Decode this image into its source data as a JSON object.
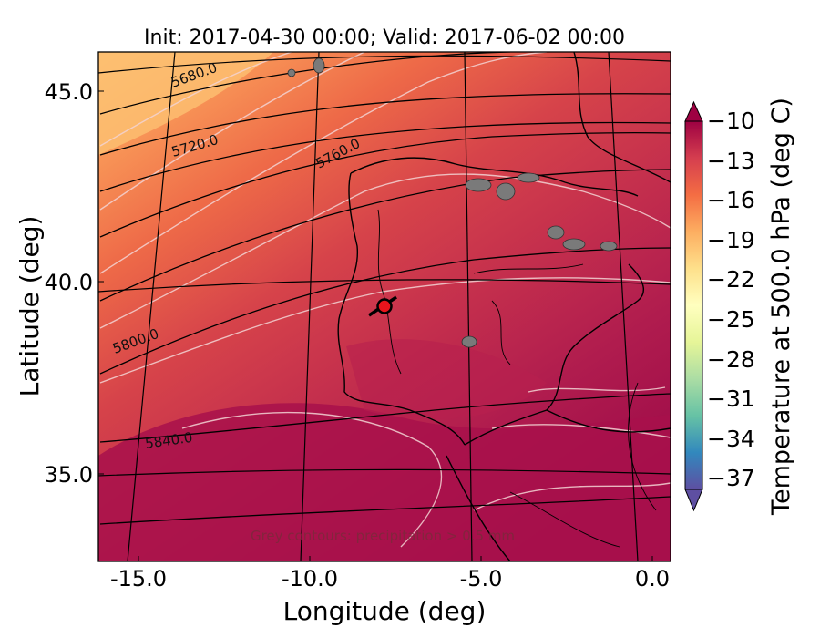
{
  "title": "Init: 2017-04-30 00:00; Valid: 2017-06-02 00:00",
  "axes": {
    "xlabel": "Longitude (deg)",
    "ylabel": "Latitude (deg)",
    "xticks": [
      "-15.0",
      "-10.0",
      "-5.0",
      "0.0"
    ],
    "yticks": [
      "45.0",
      "40.0",
      "35.0"
    ]
  },
  "colorbar": {
    "label": "Temperature at 500.0 hPa (deg C)",
    "ticks": [
      "−10",
      "−13",
      "−16",
      "−19",
      "−22",
      "−25",
      "−28",
      "−31",
      "−34",
      "−37"
    ]
  },
  "height_contours": [
    "5680.0",
    "5720.0",
    "5760.0",
    "5800.0",
    "5840.0"
  ],
  "footnote": "Grey contours: precipitation > 0.5 mm",
  "colors": {
    "warm_deep": "#a3124a",
    "warm_mid": "#c9324c",
    "orange": "#ef6f4a",
    "light_orange": "#fdbd6f",
    "marker": "#e8141c"
  }
}
